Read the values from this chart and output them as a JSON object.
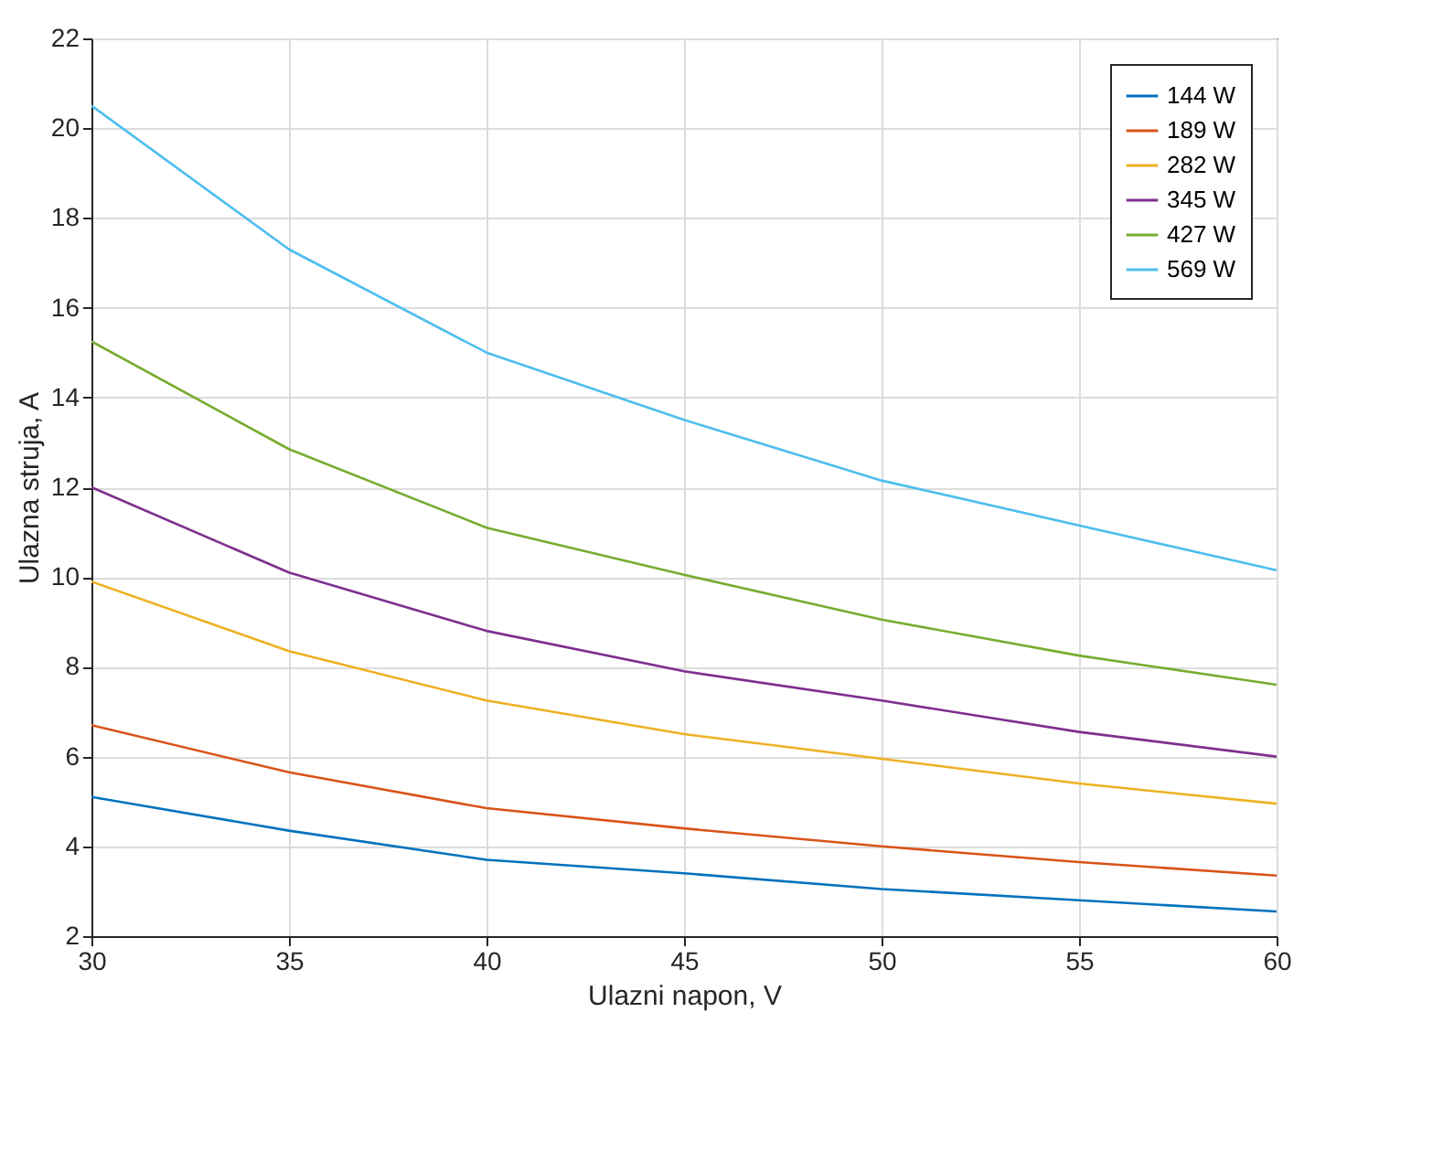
{
  "chart_data": {
    "type": "line",
    "xlabel": "Ulazni napon, V",
    "ylabel": "Ulazna struja, A",
    "x": [
      30,
      35,
      40,
      45,
      50,
      55,
      60
    ],
    "xlim": [
      30,
      60
    ],
    "xticks": [
      30,
      35,
      40,
      45,
      50,
      55,
      60
    ],
    "ylim": [
      2,
      22
    ],
    "yticks": [
      2,
      4,
      6,
      8,
      10,
      12,
      14,
      16,
      18,
      20,
      22
    ],
    "grid": true,
    "legend": "top right",
    "marker": "none",
    "line_style": "solid",
    "series": [
      {
        "name": "144 W",
        "color": "#0072bd",
        "values": [
          5.1,
          4.35,
          3.7,
          3.4,
          3.05,
          2.8,
          2.55
        ]
      },
      {
        "name": "189 W",
        "color": "#d95319",
        "values": [
          6.7,
          5.65,
          4.85,
          4.4,
          4.0,
          3.65,
          3.35
        ]
      },
      {
        "name": "282 W",
        "color": "#edb120",
        "values": [
          9.9,
          8.35,
          7.25,
          6.5,
          5.95,
          5.4,
          4.95
        ]
      },
      {
        "name": "345 W",
        "color": "#7e2f8e",
        "values": [
          12.0,
          10.1,
          8.8,
          7.9,
          7.25,
          6.55,
          6.0
        ]
      },
      {
        "name": "427 W",
        "color": "#77ac30",
        "values": [
          15.25,
          12.85,
          11.1,
          10.05,
          9.05,
          8.25,
          7.6
        ]
      },
      {
        "name": "569 W",
        "color": "#4dbeee",
        "values": [
          20.5,
          17.3,
          15.0,
          13.5,
          12.15,
          11.15,
          10.15
        ]
      }
    ]
  }
}
